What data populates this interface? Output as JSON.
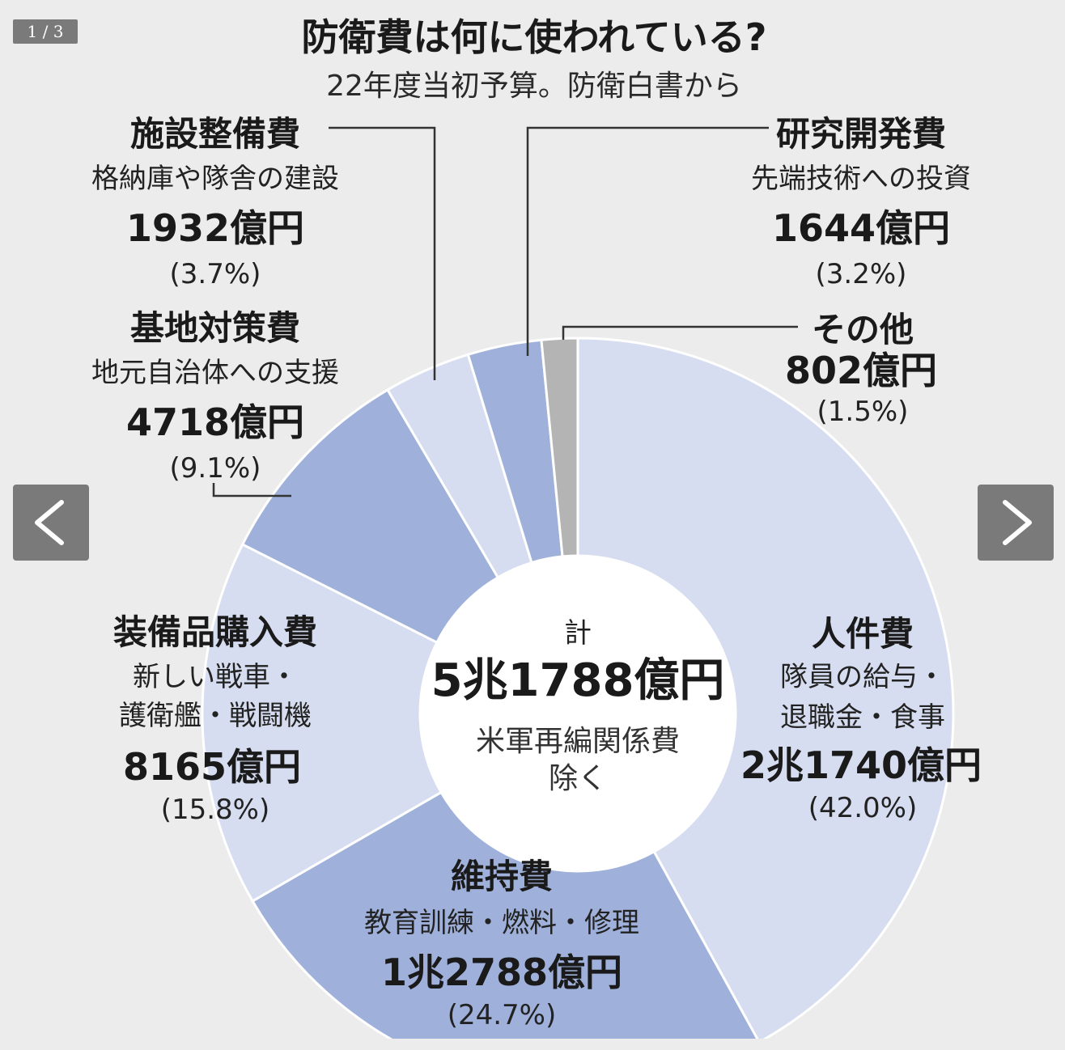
{
  "viewer": {
    "page_counter": "1 / 3",
    "prev_icon": "chevron-left-icon",
    "next_icon": "chevron-right-icon"
  },
  "chart_data": {
    "type": "pie",
    "title": "防衛費は何に使われている?",
    "subtitle": "22年度当初予算。防衛白書から",
    "total": {
      "label": "計",
      "value": "5兆1788億円",
      "note_line1": "米軍再編関係費",
      "note_line2": "除く"
    },
    "slices": [
      {
        "name": "人件費",
        "desc": [
          "隊員の給与・",
          "退職金・食事"
        ],
        "amount": "2兆1740億円",
        "value": 21740,
        "percent_label": "(42.0%)",
        "percent": 42.0,
        "color": "#d6ddf0"
      },
      {
        "name": "維持費",
        "desc": [
          "教育訓練・燃料・修理"
        ],
        "amount": "1兆2788億円",
        "value": 12788,
        "percent_label": "(24.7%)",
        "percent": 24.7,
        "color": "#9fb1db"
      },
      {
        "name": "装備品購入費",
        "desc": [
          "新しい戦車・",
          "護衛艦・戦闘機"
        ],
        "amount": "8165億円",
        "value": 8165,
        "percent_label": "(15.8%)",
        "percent": 15.8,
        "color": "#d6ddf0"
      },
      {
        "name": "基地対策費",
        "desc": [
          "地元自治体への支援"
        ],
        "amount": "4718億円",
        "value": 4718,
        "percent_label": "(9.1%)",
        "percent": 9.1,
        "color": "#9fb1db"
      },
      {
        "name": "施設整備費",
        "desc": [
          "格納庫や隊舎の建設"
        ],
        "amount": "1932億円",
        "value": 1932,
        "percent_label": "(3.7%)",
        "percent": 3.7,
        "color": "#d6ddf0"
      },
      {
        "name": "研究開発費",
        "desc": [
          "先端技術への投資"
        ],
        "amount": "1644億円",
        "value": 1644,
        "percent_label": "(3.2%)",
        "percent": 3.2,
        "color": "#9fb1db"
      },
      {
        "name": "その他",
        "desc": [],
        "amount": "802億円",
        "value": 802,
        "percent_label": "(1.5%)",
        "percent": 1.5,
        "color": "#b4b4b4"
      }
    ]
  }
}
